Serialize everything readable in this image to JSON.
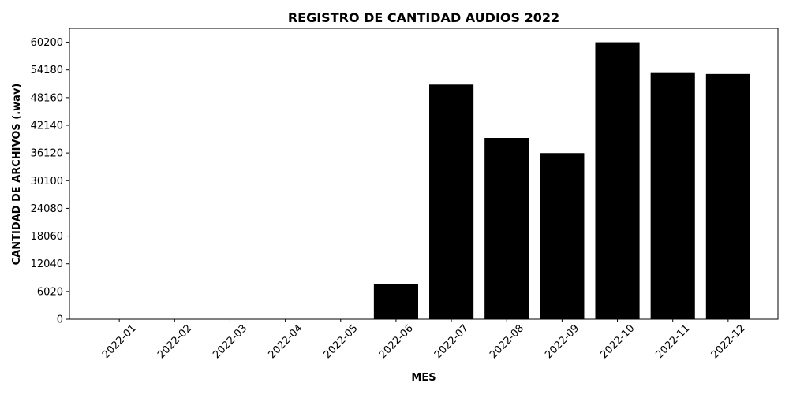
{
  "chart_data": {
    "type": "bar",
    "title": "REGISTRO DE CANTIDAD AUDIOS 2022",
    "xlabel": "MES",
    "ylabel": "CANTIDAD DE ARCHIVOS (.wav)",
    "categories": [
      "2022-01",
      "2022-02",
      "2022-03",
      "2022-04",
      "2022-05",
      "2022-06",
      "2022-07",
      "2022-08",
      "2022-09",
      "2022-10",
      "2022-11",
      "2022-12"
    ],
    "values": [
      0,
      0,
      0,
      0,
      0,
      7600,
      51000,
      39400,
      36100,
      60200,
      53500,
      53300
    ],
    "yticks": [
      0,
      6020,
      12040,
      18060,
      24080,
      30100,
      36120,
      42140,
      48160,
      54180,
      60200
    ],
    "ylim": [
      0,
      63210
    ],
    "bar_color": "#000000",
    "grid": false,
    "legend": "none"
  }
}
